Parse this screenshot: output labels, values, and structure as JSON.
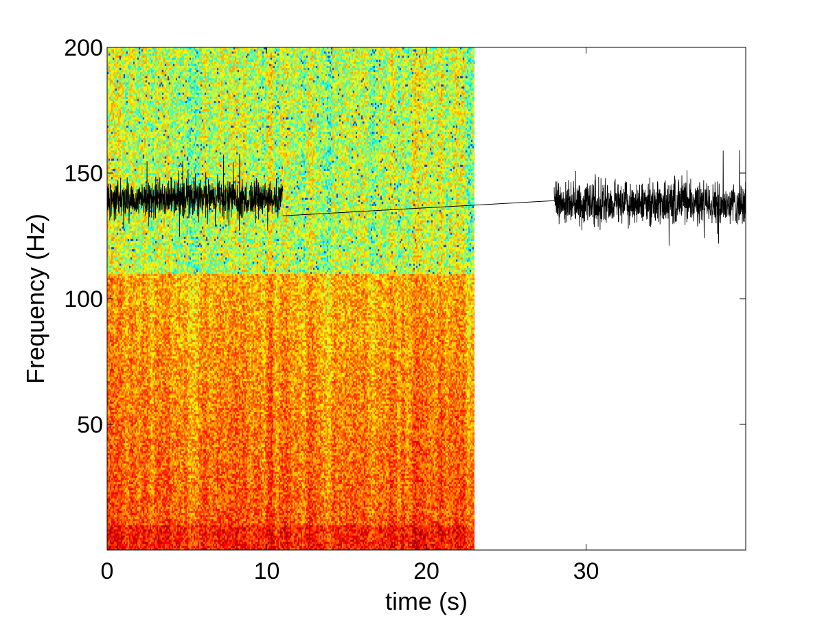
{
  "chart_data": {
    "type": "heatmap",
    "title": "",
    "xlabel": "time (s)",
    "ylabel": "Frequency (Hz)",
    "xlim": [
      0,
      40
    ],
    "ylim": [
      0,
      200
    ],
    "x_ticks": [
      0,
      10,
      20,
      30
    ],
    "y_ticks": [
      50,
      100,
      150,
      200
    ],
    "grid": false,
    "legend": "none",
    "spectrogram": {
      "time_range": [
        0,
        23
      ],
      "freq_range": [
        0,
        200
      ],
      "colormap": "jet",
      "colormap_stops": [
        "#00008f",
        "#0000ff",
        "#00ffff",
        "#ffff00",
        "#ff8000",
        "#ff0000",
        "#800000"
      ],
      "high_energy_band": [
        0,
        110
      ],
      "lowest_band_strongest": [
        0,
        10
      ]
    },
    "overlay_series": {
      "name": "",
      "color": "#000000",
      "segments": [
        {
          "t_start": 0,
          "t_end": 11,
          "mean": 140,
          "noise_amplitude": 7
        },
        {
          "t_start": 28,
          "t_end": 40,
          "mean": 138,
          "noise_amplitude": 8
        }
      ],
      "bridge": {
        "from": [
          11,
          133
        ],
        "to": [
          28,
          139
        ]
      }
    }
  }
}
